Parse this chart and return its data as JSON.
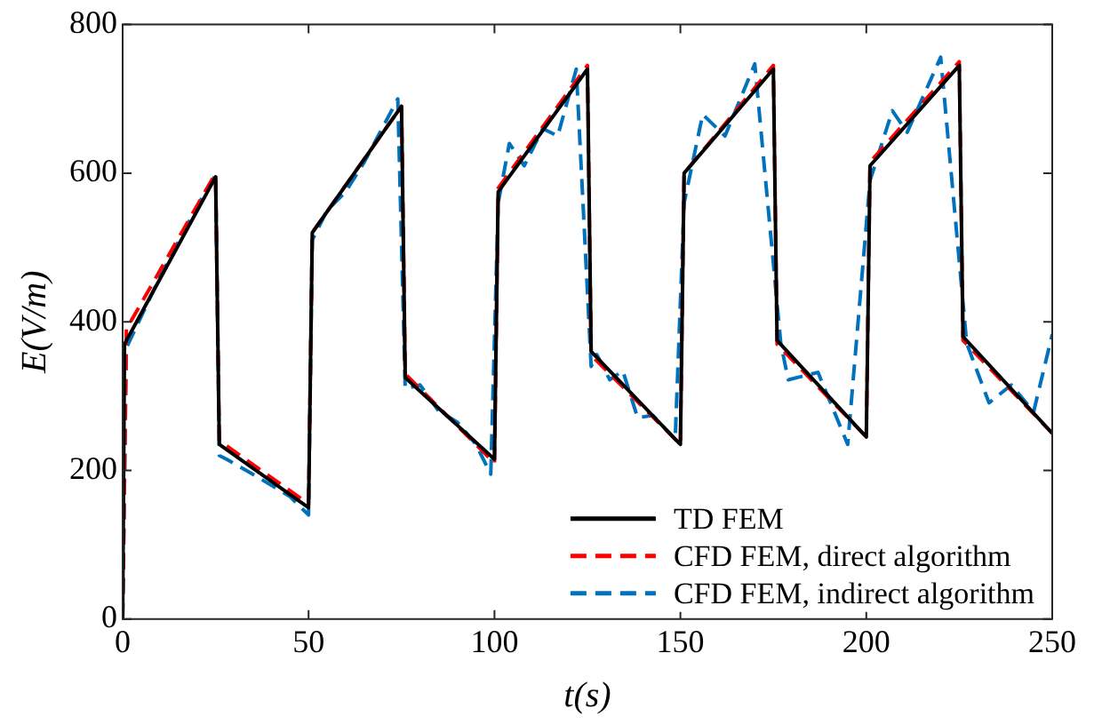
{
  "chart_data": {
    "type": "line",
    "xlabel": "t(s)",
    "ylabel": "E(V/m)",
    "xlim": [
      0,
      250
    ],
    "ylim": [
      0,
      800
    ],
    "xticks": [
      0,
      50,
      100,
      150,
      200,
      250
    ],
    "yticks": [
      0,
      200,
      400,
      600,
      800
    ],
    "legend": "bottom right",
    "marker": "none",
    "series": [
      {
        "name": "TD FEM",
        "color": "#000000",
        "line_style": "solid",
        "x": [
          0,
          0.5,
          25,
          26,
          50,
          51,
          75,
          76,
          100,
          101,
          125,
          126,
          150,
          151,
          175,
          176,
          200,
          201,
          225,
          226,
          250
        ],
        "values": [
          0,
          370,
          595,
          235,
          150,
          520,
          690,
          325,
          215,
          575,
          740,
          360,
          235,
          600,
          740,
          375,
          245,
          610,
          745,
          380,
          250
        ]
      },
      {
        "name": "CFD FEM, direct algorithm",
        "color": "#ff0000",
        "line_style": "dashed",
        "x": [
          0,
          1,
          25,
          26,
          50,
          51,
          75,
          76,
          100,
          101,
          125,
          126,
          150,
          151,
          175,
          176,
          200,
          201,
          225,
          226,
          250
        ],
        "values": [
          0,
          390,
          600,
          240,
          155,
          520,
          690,
          330,
          210,
          580,
          745,
          355,
          235,
          600,
          745,
          370,
          245,
          615,
          750,
          375,
          250
        ]
      },
      {
        "name": "CFD FEM, indirect algorithm",
        "color": "#0072bd",
        "line_style": "dashed",
        "x": [
          0,
          1,
          10,
          20,
          25,
          26,
          28,
          35,
          45,
          50,
          51,
          55,
          60,
          65,
          74,
          76,
          80,
          85,
          90,
          95,
          99,
          101,
          104,
          108,
          113,
          117,
          122,
          126,
          127.5,
          131,
          134.5,
          138.5,
          142.6,
          148.6,
          151,
          156,
          162,
          170,
          177,
          179,
          187,
          195,
          201,
          207,
          211,
          220,
          227,
          233,
          239,
          245,
          250
        ],
        "values": [
          0,
          365,
          460,
          555,
          598,
          220,
          215,
          195,
          165,
          140,
          510,
          550,
          575,
          615,
          700,
          310,
          315,
          280,
          265,
          235,
          195,
          560,
          640,
          610,
          660,
          650,
          740,
          340,
          356,
          322,
          334,
          271,
          274,
          242,
          560,
          679,
          650,
          747,
          371,
          322,
          332,
          235,
          590,
          684,
          655,
          756,
          371,
          291,
          315,
          279,
          383
        ]
      }
    ]
  }
}
